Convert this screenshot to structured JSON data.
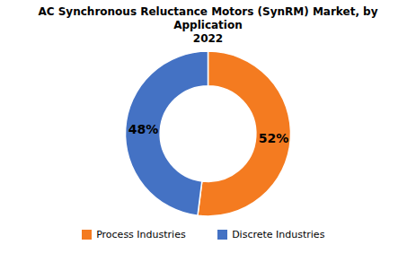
{
  "chart_data": {
    "type": "donut",
    "title": "AC Synchronous Reluctance Motors (SynRM) Market, by Application\n2022",
    "categories": [
      "Process Industries",
      "Discrete Industries"
    ],
    "values": [
      52,
      48
    ],
    "value_labels": [
      "52%",
      "48%"
    ],
    "colors": [
      "#F47B20",
      "#4472C4"
    ],
    "data_labels": true,
    "legend": "bottom"
  }
}
